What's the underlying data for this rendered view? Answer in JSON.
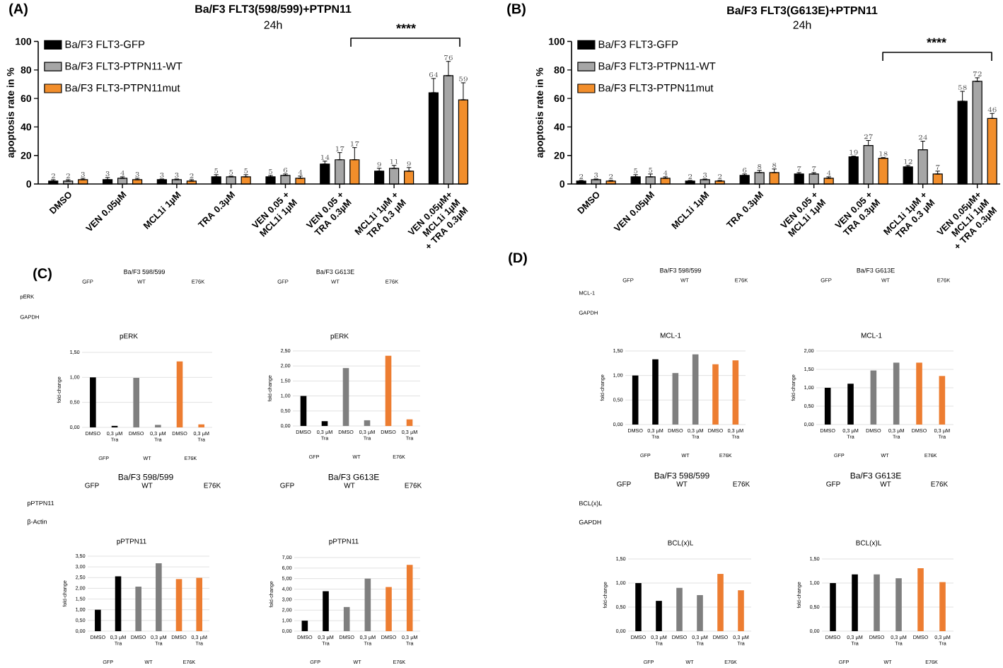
{
  "chart_data": [
    {
      "type": "bar",
      "title": "Ba/F3 FLT3(598/599)+PTPN11",
      "subtitle": "24h",
      "ylabel": "apoptosis rate in %",
      "categories": [
        "DMSO",
        "VEN 0.05µM",
        "MCL1i 1µM",
        "TRA 0.3µM",
        "VEN 0.05 + MCL1i 1µM",
        "VEN 0.05 + TRA 0.3µM",
        "MCL1i 1µM + TRA 0.3 µM",
        "VEN 0.05µM+ MCL1i 1µM + TRA 0.3µM"
      ],
      "series": [
        {
          "name": "Ba/F3 FLT3-GFP",
          "color": "#000000",
          "values": [
            2,
            3,
            3,
            5,
            5,
            14,
            9,
            64
          ],
          "errors": [
            [
              2,
              3
            ],
            [
              3,
              4.5
            ],
            [
              3,
              3.5
            ],
            [
              5,
              6.5
            ],
            [
              5,
              6
            ],
            [
              14,
              16
            ],
            [
              9,
              11
            ],
            [
              64,
              74
            ]
          ]
        },
        {
          "name": "Ba/F3 FLT3-PTPN11-WT",
          "color": "#a6a6a6",
          "values": [
            2,
            4,
            3,
            5,
            6,
            17,
            11,
            76
          ],
          "errors": [
            [
              2,
              3
            ],
            [
              4,
              5
            ],
            [
              3,
              3.5
            ],
            [
              5,
              5.5
            ],
            [
              6,
              7
            ],
            [
              17,
              22
            ],
            [
              11,
              13
            ],
            [
              76,
              86
            ]
          ]
        },
        {
          "name": "Ba/F3 FLT3-PTPN11mut",
          "color": "#f28e2b",
          "values": [
            3,
            3,
            2,
            5,
            4,
            17,
            9,
            59
          ],
          "errors": [
            [
              3,
              4
            ],
            [
              3,
              4
            ],
            [
              2,
              3
            ],
            [
              5,
              6.5
            ],
            [
              4,
              5.5
            ],
            [
              17,
              25.5
            ],
            [
              9,
              11.5
            ],
            [
              59,
              71
            ]
          ]
        }
      ],
      "ylim": [
        0,
        100
      ],
      "yticks": [
        0,
        20,
        40,
        60,
        80,
        100
      ],
      "legend": "top left",
      "data_labels": true,
      "annotations": [
        "****",
        "(A)"
      ]
    },
    {
      "type": "bar",
      "title": "Ba/F3 FLT3(G613E)+PTPN11",
      "subtitle": "24h",
      "ylabel": "apoptosis rate in %",
      "categories": [
        "DMSO",
        "VEN 0.05µM",
        "MCL1i 1µM",
        "TRA 0.3µM",
        "VEN 0.05 + MCL1i 1µM",
        "VEN 0.05 + TRA 0.3µM",
        "MCL1i 1µM + TRA 0.3 µM",
        "VEN 0.05µM+ MCL1i 1µM + TRA 0.3µM"
      ],
      "series": [
        {
          "name": "Ba/F3 FLT3-GFP",
          "color": "#000000",
          "values": [
            2,
            5,
            2,
            6,
            7,
            19,
            12,
            58
          ],
          "errors": [
            [
              2,
              2.5
            ],
            [
              5,
              6.5
            ],
            [
              2,
              2.5
            ],
            [
              6,
              7
            ],
            [
              7,
              8
            ],
            [
              19,
              19.5
            ],
            [
              12,
              13
            ],
            [
              58,
              65
            ]
          ]
        },
        {
          "name": "Ba/F3 FLT3-PTPN11-WT",
          "color": "#a6a6a6",
          "values": [
            3,
            5,
            3,
            8,
            7,
            27,
            24,
            72
          ],
          "errors": [
            [
              3,
              3.5
            ],
            [
              5,
              7
            ],
            [
              3,
              3.5
            ],
            [
              8,
              9.5
            ],
            [
              7,
              8
            ],
            [
              27,
              30.5
            ],
            [
              24,
              30
            ],
            [
              72,
              74.5
            ]
          ]
        },
        {
          "name": "Ba/F3 FLT3-PTPN11mut",
          "color": "#f28e2b",
          "values": [
            2,
            4,
            2,
            8,
            4,
            18,
            7,
            46
          ],
          "errors": [
            [
              2,
              2.5
            ],
            [
              4,
              5
            ],
            [
              2,
              2.5
            ],
            [
              8,
              10.5
            ],
            [
              4,
              5
            ],
            [
              18,
              18.5
            ],
            [
              7,
              9
            ],
            [
              46,
              49.5
            ]
          ]
        }
      ],
      "ylim": [
        0,
        100
      ],
      "yticks": [
        0,
        20,
        40,
        60,
        80,
        100
      ],
      "legend": "top left",
      "data_labels": true,
      "annotations": [
        "****",
        "(B)"
      ]
    },
    {
      "type": "other",
      "title": "Ba/F3 598/599",
      "annotations": [
        "GFP",
        "WT",
        "E76K",
        "pERK",
        "GAPDH",
        "(C)"
      ]
    },
    {
      "type": "other",
      "title": "Ba/F3 G613E",
      "annotations": [
        "GFP",
        "WT",
        "E76K"
      ]
    },
    {
      "type": "bar",
      "title": "pERK",
      "ylabel": "fold-change",
      "categories": [
        "DMSO",
        "0,3 µM Tra",
        "DMSO",
        "0,3 µM Tra",
        "DMSO",
        "0,3 µM Tra"
      ],
      "values": [
        1,
        0.03,
        0.99,
        0.05,
        1.32,
        0.06
      ],
      "colors": [
        "#000000",
        "#000000",
        "#7f7f7f",
        "#7f7f7f",
        "#ed7d31",
        "#ed7d31"
      ],
      "ylim": [
        0,
        1.5
      ],
      "yticks": [
        {
          "value": 0,
          "label": "0,00"
        },
        {
          "value": 0.5,
          "label": "0,50"
        },
        {
          "value": 1,
          "label": "1,00"
        },
        {
          "value": 1.5,
          "label": "1,50"
        }
      ],
      "grid": "y",
      "annotations": [
        "GFP",
        "WT",
        "E76K"
      ]
    },
    {
      "type": "bar",
      "title": "pERK",
      "ylabel": "fold-change",
      "categories": [
        "DMSO",
        "0,3 µM Tra",
        "DMSO",
        "0,3 µM Tra",
        "DMSO",
        "0,3 µM Tra"
      ],
      "values": [
        1,
        0.16,
        1.93,
        0.19,
        2.34,
        0.22
      ],
      "colors": [
        "#000000",
        "#000000",
        "#7f7f7f",
        "#7f7f7f",
        "#ed7d31",
        "#ed7d31"
      ],
      "ylim": [
        0,
        2.5
      ],
      "yticks": [
        {
          "value": 0,
          "label": "0,00"
        },
        {
          "value": 0.5,
          "label": "0,50"
        },
        {
          "value": 1,
          "label": "1,00"
        },
        {
          "value": 1.5,
          "label": "1,50"
        },
        {
          "value": 2,
          "label": "2,00"
        },
        {
          "value": 2.5,
          "label": "2,50"
        }
      ],
      "grid": "y",
      "annotations": [
        "GFP",
        "WT",
        "E76K"
      ]
    },
    {
      "type": "other",
      "title": "Ba/F3 598/599",
      "annotations": [
        "GFP",
        "WT",
        "E76K",
        "pPTPN11",
        "β-Actin"
      ]
    },
    {
      "type": "other",
      "title": "Ba/F3 G613E",
      "annotations": [
        "GFP",
        "WT",
        "E76K"
      ]
    },
    {
      "type": "bar",
      "title": "pPTPN11",
      "ylabel": "fold-change",
      "categories": [
        "DMSO",
        "0,3 µM Tra",
        "DMSO",
        "0,3 µM Tra",
        "DMSO",
        "0,3 µM Tra"
      ],
      "values": [
        1,
        2.56,
        2.08,
        3.17,
        2.43,
        2.49
      ],
      "colors": [
        "#000000",
        "#000000",
        "#7f7f7f",
        "#7f7f7f",
        "#ed7d31",
        "#ed7d31"
      ],
      "ylim": [
        0,
        3.5
      ],
      "yticks": [
        {
          "value": 0,
          "label": "0,00"
        },
        {
          "value": 0.5,
          "label": "0,50"
        },
        {
          "value": 1,
          "label": "1,00"
        },
        {
          "value": 1.5,
          "label": "1,50"
        },
        {
          "value": 2,
          "label": "2,00"
        },
        {
          "value": 2.5,
          "label": "2,50"
        },
        {
          "value": 3,
          "label": "3,00"
        },
        {
          "value": 3.5,
          "label": "3,50"
        }
      ],
      "grid": "y",
      "annotations": [
        "GFP",
        "WT",
        "E76K"
      ]
    },
    {
      "type": "bar",
      "title": "pPTPN11",
      "ylabel": "fold-change",
      "categories": [
        "DMSO",
        "0,3 µM Tra",
        "DMSO",
        "0,3 µM Tra",
        "DMSO",
        "0,3 µM Tra"
      ],
      "values": [
        1,
        3.8,
        2.3,
        5,
        4.2,
        6.3
      ],
      "colors": [
        "#000000",
        "#000000",
        "#7f7f7f",
        "#7f7f7f",
        "#ed7d31",
        "#ed7d31"
      ],
      "ylim": [
        0,
        7
      ],
      "yticks": [
        {
          "value": 0,
          "label": "0,00"
        },
        {
          "value": 1,
          "label": "1,00"
        },
        {
          "value": 2,
          "label": "2,00"
        },
        {
          "value": 3,
          "label": "3,00"
        },
        {
          "value": 4,
          "label": "4,00"
        },
        {
          "value": 5,
          "label": "5,00"
        },
        {
          "value": 6,
          "label": "6,00"
        },
        {
          "value": 7,
          "label": "7,00"
        }
      ],
      "grid": "y",
      "annotations": [
        "GFP",
        "WT",
        "E76K"
      ]
    },
    {
      "type": "other",
      "title": "Ba/F3 598/599",
      "annotations": [
        "GFP",
        "WT",
        "E76K",
        "MCL-1",
        "GAPDH",
        "(D)"
      ]
    },
    {
      "type": "other",
      "title": "Ba/F3 G613E",
      "annotations": [
        "GFP",
        "WT",
        "E76K"
      ]
    },
    {
      "type": "bar",
      "title": "MCL-1",
      "ylabel": "fold-change",
      "categories": [
        "DMSO",
        "0,3 µM Tra",
        "DMSO",
        "0,3 µM Tra",
        "DMSO",
        "0,3 µM Tra"
      ],
      "values": [
        1,
        1.33,
        1.05,
        1.43,
        1.23,
        1.31
      ],
      "colors": [
        "#000000",
        "#000000",
        "#7f7f7f",
        "#7f7f7f",
        "#ed7d31",
        "#ed7d31"
      ],
      "ylim": [
        0,
        1.5
      ],
      "yticks": [
        {
          "value": 0,
          "label": "0,00"
        },
        {
          "value": 0.5,
          "label": "0,50"
        },
        {
          "value": 1,
          "label": "1,00"
        },
        {
          "value": 1.5,
          "label": "1,50"
        }
      ],
      "grid": "y",
      "annotations": [
        "GFP",
        "WT",
        "E76K"
      ]
    },
    {
      "type": "bar",
      "title": "MCL-1",
      "ylabel": "fold-change",
      "categories": [
        "DMSO",
        "0,3 µM Tra",
        "DMSO",
        "0,3 µM Tra",
        "DMSO",
        "0,3 µM Tra"
      ],
      "values": [
        1,
        1.11,
        1.47,
        1.68,
        1.68,
        1.32
      ],
      "colors": [
        "#000000",
        "#000000",
        "#7f7f7f",
        "#7f7f7f",
        "#ed7d31",
        "#ed7d31"
      ],
      "ylim": [
        0,
        2
      ],
      "yticks": [
        {
          "value": 0,
          "label": "0,00"
        },
        {
          "value": 0.5,
          "label": "0,50"
        },
        {
          "value": 1,
          "label": "1,00"
        },
        {
          "value": 1.5,
          "label": "1,50"
        },
        {
          "value": 2,
          "label": "2,00"
        }
      ],
      "grid": "y",
      "annotations": [
        "GFP",
        "WT",
        "E76K"
      ]
    },
    {
      "type": "other",
      "title": "Ba/F3 598/599",
      "annotations": [
        "GFP",
        "WT",
        "E76K",
        "BCL(x)L",
        "GAPDH"
      ]
    },
    {
      "type": "other",
      "title": "Ba/F3 G613E",
      "annotations": [
        "GFP",
        "WT",
        "E76K"
      ]
    },
    {
      "type": "bar",
      "title": "BCL(x)L",
      "ylabel": "fold-change",
      "categories": [
        "DMSO",
        "0,3 µM Tra",
        "DMSO",
        "0,3 µM Tra",
        "DMSO",
        "0,3 µM Tra"
      ],
      "values": [
        1,
        0.63,
        0.9,
        0.75,
        1.19,
        0.85
      ],
      "colors": [
        "#000000",
        "#000000",
        "#7f7f7f",
        "#7f7f7f",
        "#ed7d31",
        "#ed7d31"
      ],
      "ylim": [
        0,
        1.5
      ],
      "yticks": [
        {
          "value": 0,
          "label": "0,00"
        },
        {
          "value": 0.5,
          "label": "0,50"
        },
        {
          "value": 1,
          "label": "1,00"
        },
        {
          "value": 1.5,
          "label": "1,50"
        }
      ],
      "grid": "y",
      "annotations": [
        "GFP",
        "WT",
        "E76K"
      ]
    },
    {
      "type": "bar",
      "title": "BCL(x)L",
      "ylabel": "fold-change",
      "categories": [
        "DMSO",
        "0,3 µM Tra",
        "DMSO",
        "0,3 µM Tra",
        "DMSO",
        "0,3 µM Tra"
      ],
      "values": [
        1,
        1.18,
        1.18,
        1.1,
        1.31,
        1.02
      ],
      "colors": [
        "#000000",
        "#000000",
        "#7f7f7f",
        "#7f7f7f",
        "#ed7d31",
        "#ed7d31"
      ],
      "ylim": [
        0,
        1.5
      ],
      "yticks": [
        {
          "value": 0,
          "label": "0,00"
        },
        {
          "value": 0.5,
          "label": "0,50"
        },
        {
          "value": 1,
          "label": "1,00"
        },
        {
          "value": 1.5,
          "label": "1,50"
        }
      ],
      "grid": "y",
      "annotations": [
        "GFP",
        "WT",
        "E76K"
      ]
    }
  ]
}
